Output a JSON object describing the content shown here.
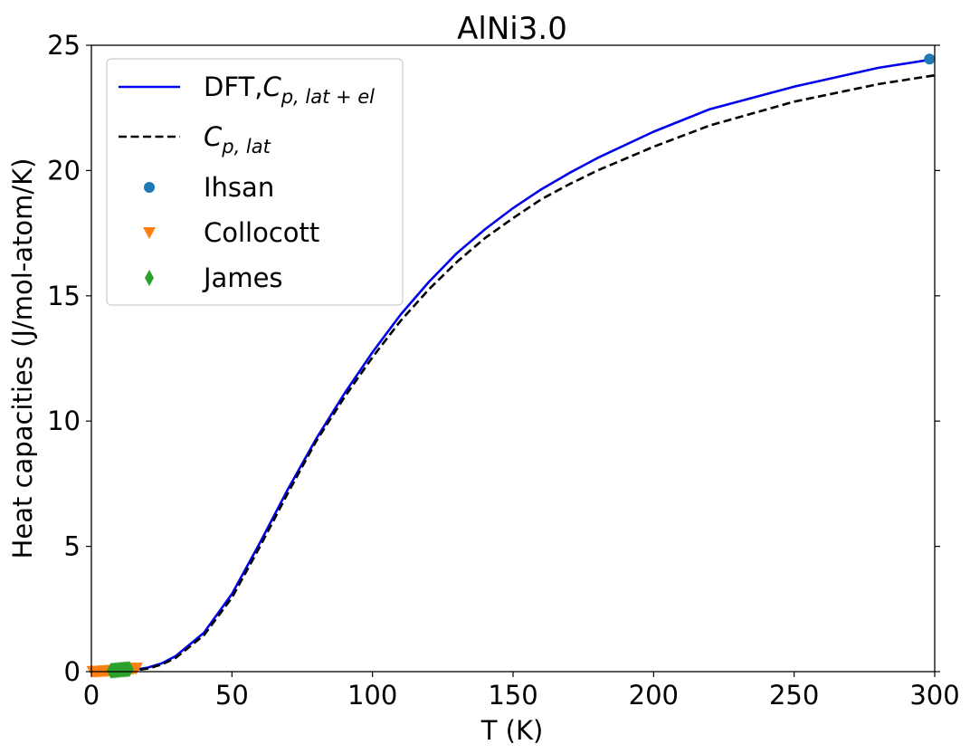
{
  "chart_data": {
    "type": "line",
    "title": "AlNi3.0",
    "xlabel": "T (K)",
    "ylabel": "Heat capacities (J/mol-atom/K)",
    "xlim": [
      0,
      300
    ],
    "ylim": [
      0,
      25
    ],
    "xticks": [
      0,
      50,
      100,
      150,
      200,
      250,
      300
    ],
    "yticks": [
      0,
      5,
      10,
      15,
      20,
      25
    ],
    "xtick_labels": [
      "0",
      "50",
      "100",
      "150",
      "200",
      "250",
      "300"
    ],
    "ytick_labels": [
      "0",
      "5",
      "10",
      "15",
      "20",
      "25"
    ],
    "grid": false,
    "legend_position": "top-left",
    "series": [
      {
        "name": "DFT,C_{p,lat+el}",
        "name_main": "DFT,",
        "name_italic": "C",
        "name_sub": "p, lat + el",
        "style": "solid",
        "color": "#0000ee",
        "x": [
          0,
          10,
          15,
          20,
          25,
          30,
          40,
          50,
          60,
          70,
          80,
          90,
          100,
          110,
          120,
          130,
          140,
          150,
          160,
          170,
          180,
          200,
          220,
          250,
          280,
          300
        ],
        "y": [
          0,
          0.02,
          0.07,
          0.16,
          0.33,
          0.62,
          1.55,
          3.1,
          5.15,
          7.3,
          9.3,
          11.1,
          12.75,
          14.25,
          15.55,
          16.7,
          17.65,
          18.5,
          19.25,
          19.9,
          20.5,
          21.55,
          22.45,
          23.35,
          24.1,
          24.45
        ]
      },
      {
        "name": "C_{p,lat}",
        "name_main": "",
        "name_italic": "C",
        "name_sub": "p, lat",
        "style": "dashed",
        "color": "#000000",
        "x": [
          0,
          10,
          15,
          20,
          25,
          30,
          40,
          50,
          60,
          70,
          80,
          90,
          100,
          110,
          120,
          130,
          140,
          150,
          160,
          170,
          180,
          200,
          220,
          250,
          280,
          300
        ],
        "y": [
          0,
          0.01,
          0.05,
          0.12,
          0.28,
          0.55,
          1.45,
          2.95,
          5.0,
          7.15,
          9.2,
          10.95,
          12.55,
          14.0,
          15.25,
          16.35,
          17.3,
          18.1,
          18.85,
          19.45,
          20.0,
          20.95,
          21.8,
          22.75,
          23.45,
          23.8
        ]
      },
      {
        "name": "Ihsan",
        "marker": "circle",
        "color": "#1f77b4",
        "x": [
          298.15
        ],
        "y": [
          24.45
        ]
      },
      {
        "name": "Collocott",
        "marker": "triangle-down",
        "color": "#ff7f0e",
        "x": [
          0.5,
          1,
          1.5,
          2,
          2.5,
          3,
          3.5,
          4,
          4.5,
          5,
          5.5,
          6,
          6.5,
          7,
          7.5,
          8,
          8.5,
          9,
          9.5,
          10,
          10.5,
          11,
          11.5,
          12,
          12.5,
          13,
          13.5,
          14,
          14.5,
          15,
          15.5,
          16
        ],
        "y": [
          0.003,
          0.005,
          0.008,
          0.011,
          0.014,
          0.017,
          0.02,
          0.023,
          0.026,
          0.03,
          0.033,
          0.037,
          0.04,
          0.044,
          0.048,
          0.052,
          0.056,
          0.06,
          0.065,
          0.07,
          0.074,
          0.08,
          0.085,
          0.09,
          0.096,
          0.1,
          0.107,
          0.113,
          0.12,
          0.127,
          0.134,
          0.14
        ]
      },
      {
        "name": "James",
        "marker": "diamond",
        "color": "#2ca02c",
        "x": [
          7,
          7.5,
          8,
          8.5,
          9,
          9.5,
          10,
          10.5,
          11,
          11.5,
          12,
          12.5,
          13,
          13.5
        ],
        "y": [
          0.04,
          0.045,
          0.05,
          0.055,
          0.06,
          0.065,
          0.07,
          0.075,
          0.08,
          0.085,
          0.09,
          0.095,
          0.1,
          0.105
        ]
      }
    ]
  }
}
